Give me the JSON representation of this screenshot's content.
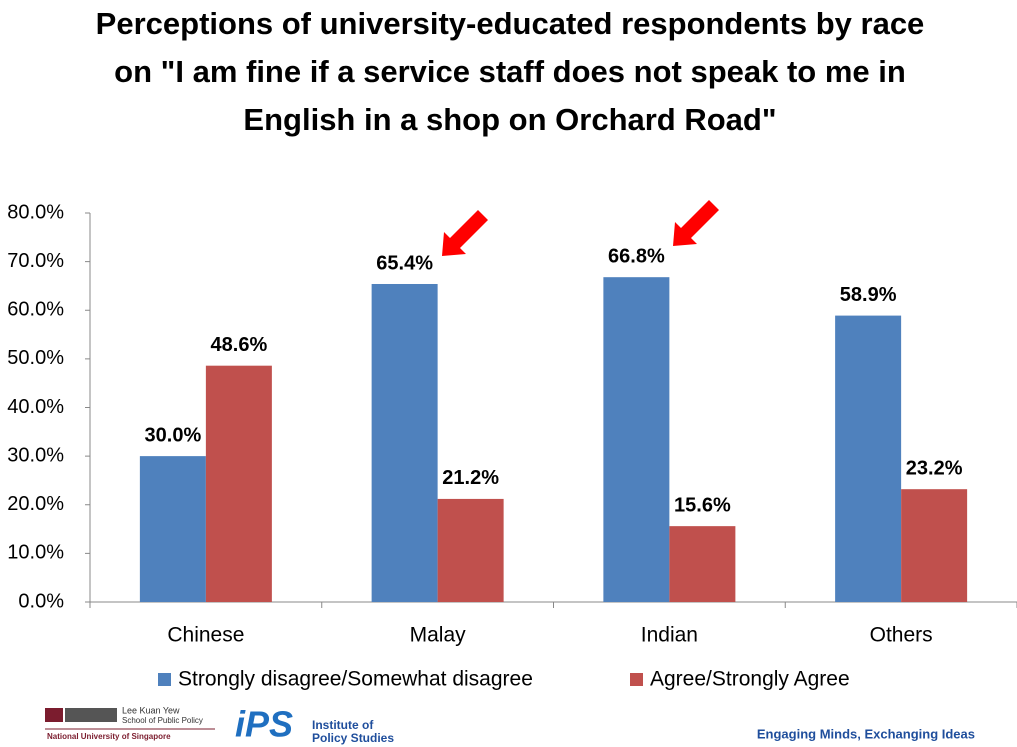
{
  "chart_data": {
    "type": "bar",
    "title": "Perceptions of university-educated respondents by race on \"I am fine if a service staff does not speak to me in English in a shop on Orchard Road\"",
    "categories": [
      "Chinese",
      "Malay",
      "Indian",
      "Others"
    ],
    "series": [
      {
        "name": "Strongly disagree/Somewhat disagree",
        "color": "#4f81bd",
        "values": [
          30.0,
          65.4,
          66.8,
          58.9
        ],
        "value_labels": [
          "30.0%",
          "65.4%",
          "66.8%",
          "58.9%"
        ]
      },
      {
        "name": "Agree/Strongly Agree",
        "color": "#c0504d",
        "values": [
          48.6,
          21.2,
          15.6,
          23.2
        ],
        "value_labels": [
          "48.6%",
          "21.2%",
          "15.6%",
          "23.2%"
        ]
      }
    ],
    "ylim": [
      0,
      80
    ],
    "yticks": [
      {
        "value": 0,
        "label": "0.0%"
      },
      {
        "value": 10,
        "label": "10.0%"
      },
      {
        "value": 20,
        "label": "20.0%"
      },
      {
        "value": 30,
        "label": "30.0%"
      },
      {
        "value": 40,
        "label": "40.0%"
      },
      {
        "value": 50,
        "label": "50.0%"
      },
      {
        "value": 60,
        "label": "60.0%"
      },
      {
        "value": 70,
        "label": "70.0%"
      },
      {
        "value": 80,
        "label": "80.0%"
      }
    ],
    "grid": false,
    "legend": "bottom"
  },
  "footer": {
    "lky_name": "Lee Kuan Yew",
    "lky_school": "School of Public Policy",
    "nus": "National University of Singapore",
    "ips_short": "iPS",
    "ips_line1": "Institute of",
    "ips_line2": "Policy Studies",
    "tagline": "Engaging Minds, Exchanging Ideas"
  }
}
